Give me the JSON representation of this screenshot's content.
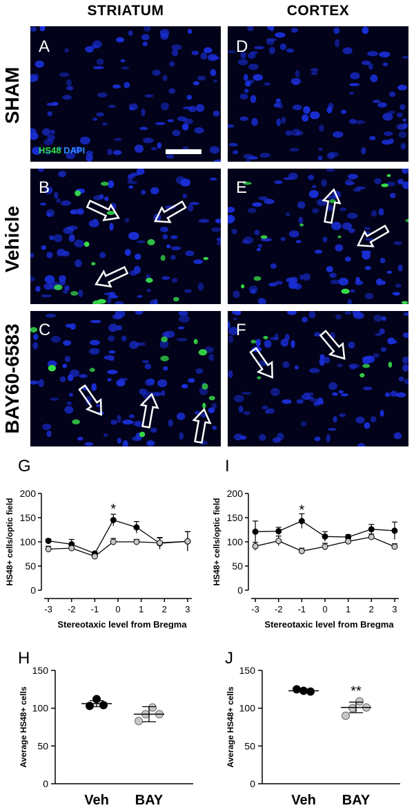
{
  "column_headers": [
    "STRIATUM",
    "CORTEX"
  ],
  "row_labels": [
    "SHAM",
    "Vehicle",
    "BAY60-6583"
  ],
  "panels": [
    {
      "letter": "A",
      "arrows": 0,
      "green": 0.0
    },
    {
      "letter": "D",
      "arrows": 0,
      "green": 0.0
    },
    {
      "letter": "B",
      "arrows": 3,
      "green": 0.35
    },
    {
      "letter": "E",
      "arrows": 2,
      "green": 0.3
    },
    {
      "letter": "C",
      "arrows": 3,
      "green": 0.3
    },
    {
      "letter": "F",
      "arrows": 2,
      "green": 0.15
    }
  ],
  "stain_legend": {
    "hs48": "HS48",
    "dapi": "DAPI",
    "hs48_color": "#2ee24a",
    "dapi_color": "#2a8bff"
  },
  "colors": {
    "nucleus": "#1a2fd8",
    "hs48": "#38e04a",
    "background": "#02021a",
    "filled": "#000000",
    "open": "#c8c8c8"
  },
  "chart_data": [
    {
      "letter": "G",
      "type": "line",
      "ylabel": "HS48+ cells/optic field",
      "xlabel": "Stereotaxic level from Bregma",
      "xlim": [
        -3.3,
        3.3
      ],
      "ylim": [
        0,
        200
      ],
      "xticks": [
        -3,
        -2,
        -1,
        0,
        1,
        2,
        3
      ],
      "yticks": [
        0,
        50,
        100,
        150,
        200
      ],
      "annotations": [
        {
          "text": "*",
          "x": -0.2,
          "y": 170
        }
      ],
      "series": [
        {
          "marker": "filled",
          "x": [
            -3,
            -2,
            -1,
            -0.2,
            0.8,
            1.8,
            3
          ],
          "y": [
            102,
            95,
            76,
            145,
            130,
            97,
            101
          ],
          "err": [
            4,
            10,
            3,
            12,
            12,
            12,
            20
          ]
        },
        {
          "marker": "open",
          "x": [
            -3,
            -2,
            -1,
            -0.2,
            0.8,
            1.8,
            3
          ],
          "y": [
            85,
            87,
            70,
            100,
            100,
            98,
            101
          ],
          "err": [
            6,
            5,
            4,
            7,
            5,
            10,
            20
          ]
        }
      ]
    },
    {
      "letter": "I",
      "type": "line",
      "ylabel": "HS48+ cells/optic field",
      "xlabel": "Stereotaxic level from Bregma",
      "xlim": [
        -3.3,
        3.3
      ],
      "ylim": [
        0,
        200
      ],
      "xticks": [
        -3,
        -2,
        -1,
        0,
        1,
        2,
        3
      ],
      "yticks": [
        0,
        50,
        100,
        150,
        200
      ],
      "annotations": [
        {
          "text": "*",
          "x": -1,
          "y": 168
        }
      ],
      "series": [
        {
          "marker": "filled",
          "x": [
            -3,
            -2,
            -1,
            0,
            1,
            2,
            3
          ],
          "y": [
            121,
            122,
            143,
            111,
            110,
            126,
            123
          ],
          "err": [
            22,
            8,
            15,
            10,
            5,
            10,
            18
          ]
        },
        {
          "marker": "open",
          "x": [
            -3,
            -2,
            -1,
            0,
            1,
            2,
            3
          ],
          "y": [
            91,
            102,
            81,
            90,
            101,
            110,
            90
          ],
          "err": [
            8,
            10,
            6,
            7,
            5,
            6,
            6
          ]
        }
      ]
    },
    {
      "letter": "H",
      "type": "scatter",
      "ylabel": "Average HS48+ cells",
      "categories": [
        "Veh",
        "BAY"
      ],
      "ylim": [
        0,
        150
      ],
      "yticks": [
        0,
        50,
        100,
        150
      ],
      "annotations": [],
      "groups": [
        {
          "marker": "filled",
          "points": [
            103,
            112,
            104
          ],
          "mean": 106,
          "err": 4
        },
        {
          "marker": "open",
          "points": [
            83,
            92,
            101,
            92
          ],
          "mean": 92,
          "err": 10
        }
      ]
    },
    {
      "letter": "J",
      "type": "scatter",
      "ylabel": "Average HS48+ cells",
      "categories": [
        "Veh",
        "BAY"
      ],
      "ylim": [
        0,
        150
      ],
      "yticks": [
        0,
        50,
        100,
        150
      ],
      "annotations": [
        {
          "text": "**",
          "group": 1,
          "y": 124
        }
      ],
      "groups": [
        {
          "marker": "filled",
          "points": [
            125,
            123,
            122
          ],
          "mean": 123,
          "err": 1.5
        },
        {
          "marker": "open",
          "points": [
            90,
            100,
            109,
            101
          ],
          "mean": 101,
          "err": 7
        }
      ]
    }
  ]
}
